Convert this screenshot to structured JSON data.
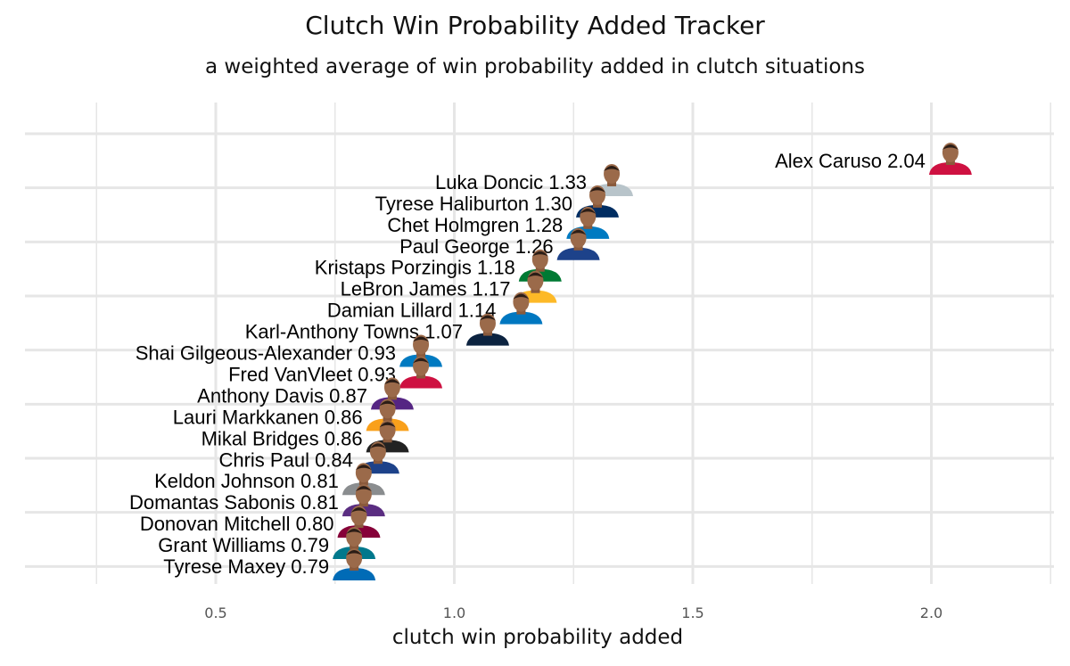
{
  "chart_data": {
    "type": "scatter",
    "title": "Clutch Win Probability Added Tracker",
    "subtitle": "a weighted average of win probability added in clutch situations",
    "xlabel": "clutch win probability added",
    "ylabel": "",
    "xlim": [
      0.25,
      2.25
    ],
    "xticks": [
      0.5,
      1.0,
      1.5,
      2.0
    ],
    "xtick_labels": [
      "0.5",
      "1.0",
      "1.5",
      "2.0"
    ],
    "grid": true,
    "point_style": "player headshot",
    "points": [
      {
        "player": "Alex Caruso",
        "value": 2.04,
        "label": "Alex Caruso 2.04",
        "team_color": "#CE1141"
      },
      {
        "player": "Luka Doncic",
        "value": 1.33,
        "label": "Luka Doncic 1.33",
        "team_color": "#B8C4CA"
      },
      {
        "player": "Tyrese Haliburton",
        "value": 1.3,
        "label": "Tyrese Haliburton 1.30",
        "team_color": "#002D62"
      },
      {
        "player": "Chet Holmgren",
        "value": 1.28,
        "label": "Chet Holmgren 1.28",
        "team_color": "#007AC1"
      },
      {
        "player": "Paul George",
        "value": 1.26,
        "label": "Paul George 1.26",
        "team_color": "#1D428A"
      },
      {
        "player": "Kristaps Porzingis",
        "value": 1.18,
        "label": "Kristaps Porzingis 1.18",
        "team_color": "#007A33"
      },
      {
        "player": "LeBron James",
        "value": 1.17,
        "label": "LeBron James 1.17",
        "team_color": "#FDB927"
      },
      {
        "player": "Damian Lillard",
        "value": 1.14,
        "label": "Damian Lillard 1.14",
        "team_color": "#0077C0"
      },
      {
        "player": "Karl-Anthony Towns",
        "value": 1.07,
        "label": "Karl-Anthony Towns 1.07",
        "team_color": "#0C2340"
      },
      {
        "player": "Shai Gilgeous-Alexander",
        "value": 0.93,
        "label": "Shai Gilgeous-Alexander 0.93",
        "team_color": "#007AC1"
      },
      {
        "player": "Fred VanVleet",
        "value": 0.93,
        "label": "Fred VanVleet 0.93",
        "team_color": "#CE1141"
      },
      {
        "player": "Anthony Davis",
        "value": 0.87,
        "label": "Anthony Davis 0.87",
        "team_color": "#552583"
      },
      {
        "player": "Lauri Markkanen",
        "value": 0.86,
        "label": "Lauri Markkanen 0.86",
        "team_color": "#F9A01B"
      },
      {
        "player": "Mikal Bridges",
        "value": 0.86,
        "label": "Mikal Bridges 0.86",
        "team_color": "#222222"
      },
      {
        "player": "Chris Paul",
        "value": 0.84,
        "label": "Chris Paul 0.84",
        "team_color": "#1D428A"
      },
      {
        "player": "Keldon Johnson",
        "value": 0.81,
        "label": "Keldon Johnson 0.81",
        "team_color": "#8A8D8F"
      },
      {
        "player": "Domantas Sabonis",
        "value": 0.81,
        "label": "Domantas Sabonis 0.81",
        "team_color": "#5A2D81"
      },
      {
        "player": "Donovan Mitchell",
        "value": 0.8,
        "label": "Donovan Mitchell 0.80",
        "team_color": "#860038"
      },
      {
        "player": "Grant Williams",
        "value": 0.79,
        "label": "Grant Williams 0.79",
        "team_color": "#00788C"
      },
      {
        "player": "Tyrese Maxey",
        "value": 0.79,
        "label": "Tyrese Maxey 0.79",
        "team_color": "#006BB6"
      }
    ]
  }
}
